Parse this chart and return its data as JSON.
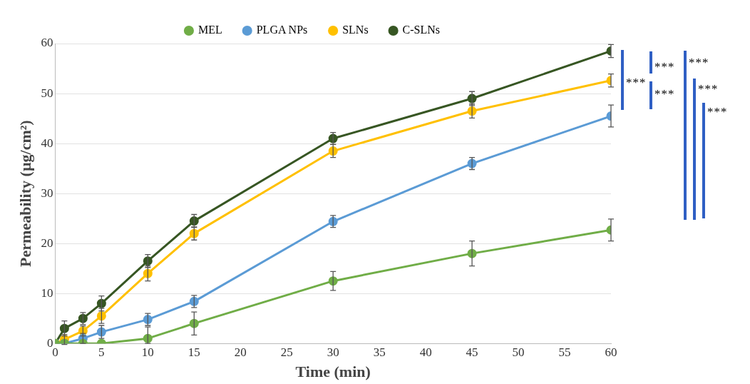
{
  "chart_data": {
    "type": "line",
    "xlabel": "Time (min)",
    "ylabel": "Permeability (µg/cm²)",
    "x": [
      0,
      1,
      3,
      5,
      10,
      15,
      30,
      45,
      60
    ],
    "series": [
      {
        "name": "MEL",
        "color": "#70ad47",
        "values": [
          0,
          0,
          0,
          0,
          1,
          4,
          12.5,
          18,
          22.7
        ],
        "errors": [
          null,
          null,
          null,
          null,
          [
            0,
            3.3
          ],
          2.3,
          1.9,
          2.5,
          2.2
        ]
      },
      {
        "name": "PLGA NPs",
        "color": "#5b9bd5",
        "values": [
          0,
          0,
          1,
          2.3,
          4.8,
          8.4,
          24.4,
          36,
          45.5
        ],
        "errors": [
          null,
          null,
          1,
          1.3,
          1.2,
          1.2,
          1.2,
          1.2,
          2.2
        ]
      },
      {
        "name": "SLNs",
        "color": "#ffc000",
        "values": [
          0,
          0.8,
          2.5,
          5.5,
          14,
          22,
          38.5,
          46.5,
          52.6
        ],
        "errors": [
          null,
          1,
          1,
          1.5,
          1.5,
          1.3,
          1.3,
          1.4,
          1.3
        ]
      },
      {
        "name": "C-SLNs",
        "color": "#375623",
        "values": [
          0,
          3,
          5,
          8,
          16.5,
          24.5,
          41,
          49,
          58.5
        ],
        "errors": [
          null,
          1.5,
          1.2,
          1.5,
          1.3,
          1.3,
          1.2,
          1.4,
          1.3
        ]
      }
    ],
    "xlim": [
      0,
      60
    ],
    "xticks": [
      0,
      5,
      10,
      15,
      20,
      25,
      30,
      35,
      40,
      45,
      50,
      55,
      60
    ],
    "ylim": [
      0,
      60
    ],
    "yticks": [
      0,
      10,
      20,
      30,
      40,
      50,
      60
    ],
    "grid": "y",
    "legend": "top",
    "marker": "circle",
    "line_style": "solid",
    "annotations": [
      "***",
      "***",
      "***",
      "***",
      "***",
      "***"
    ]
  }
}
